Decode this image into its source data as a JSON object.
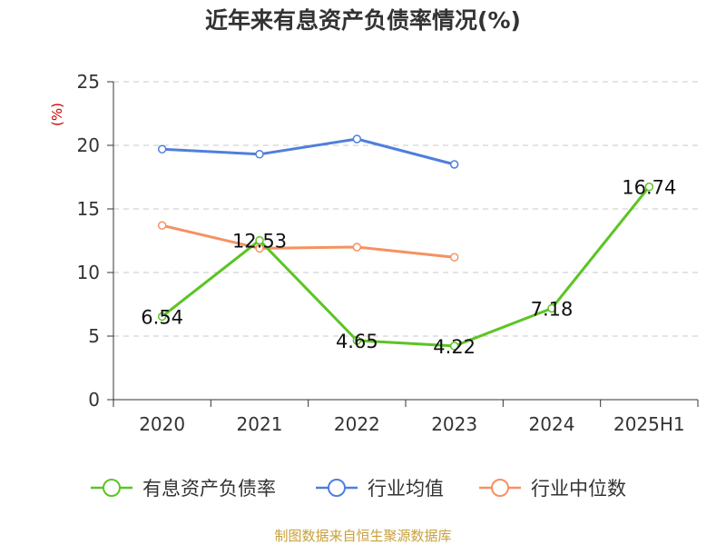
{
  "chart_data": {
    "type": "line",
    "title": "近年来有息资产负债率情况(%)",
    "y_unit": "(%)",
    "categories": [
      "2020",
      "2021",
      "2022",
      "2023",
      "2024",
      "2025H1"
    ],
    "ylim": [
      0,
      25
    ],
    "yticks": [
      0,
      5,
      10,
      15,
      20,
      25
    ],
    "grid": true,
    "legend_position": "bottom",
    "series": [
      {
        "name": "有息资产负债率",
        "color": "#5cc424",
        "values": [
          6.54,
          12.53,
          4.65,
          4.22,
          7.18,
          16.74
        ],
        "labels": [
          "6.54",
          "12.53",
          "4.65",
          "4.22",
          "7.18",
          "16.74"
        ]
      },
      {
        "name": "行业均值",
        "color": "#4f7fdc",
        "values": [
          19.7,
          19.3,
          20.5,
          18.5,
          null,
          null
        ]
      },
      {
        "name": "行业中位数",
        "color": "#f59262",
        "values": [
          13.7,
          11.9,
          12.0,
          11.2,
          null,
          null
        ]
      }
    ]
  },
  "footer": {
    "source": "制图数据来自恒生聚源数据库"
  }
}
